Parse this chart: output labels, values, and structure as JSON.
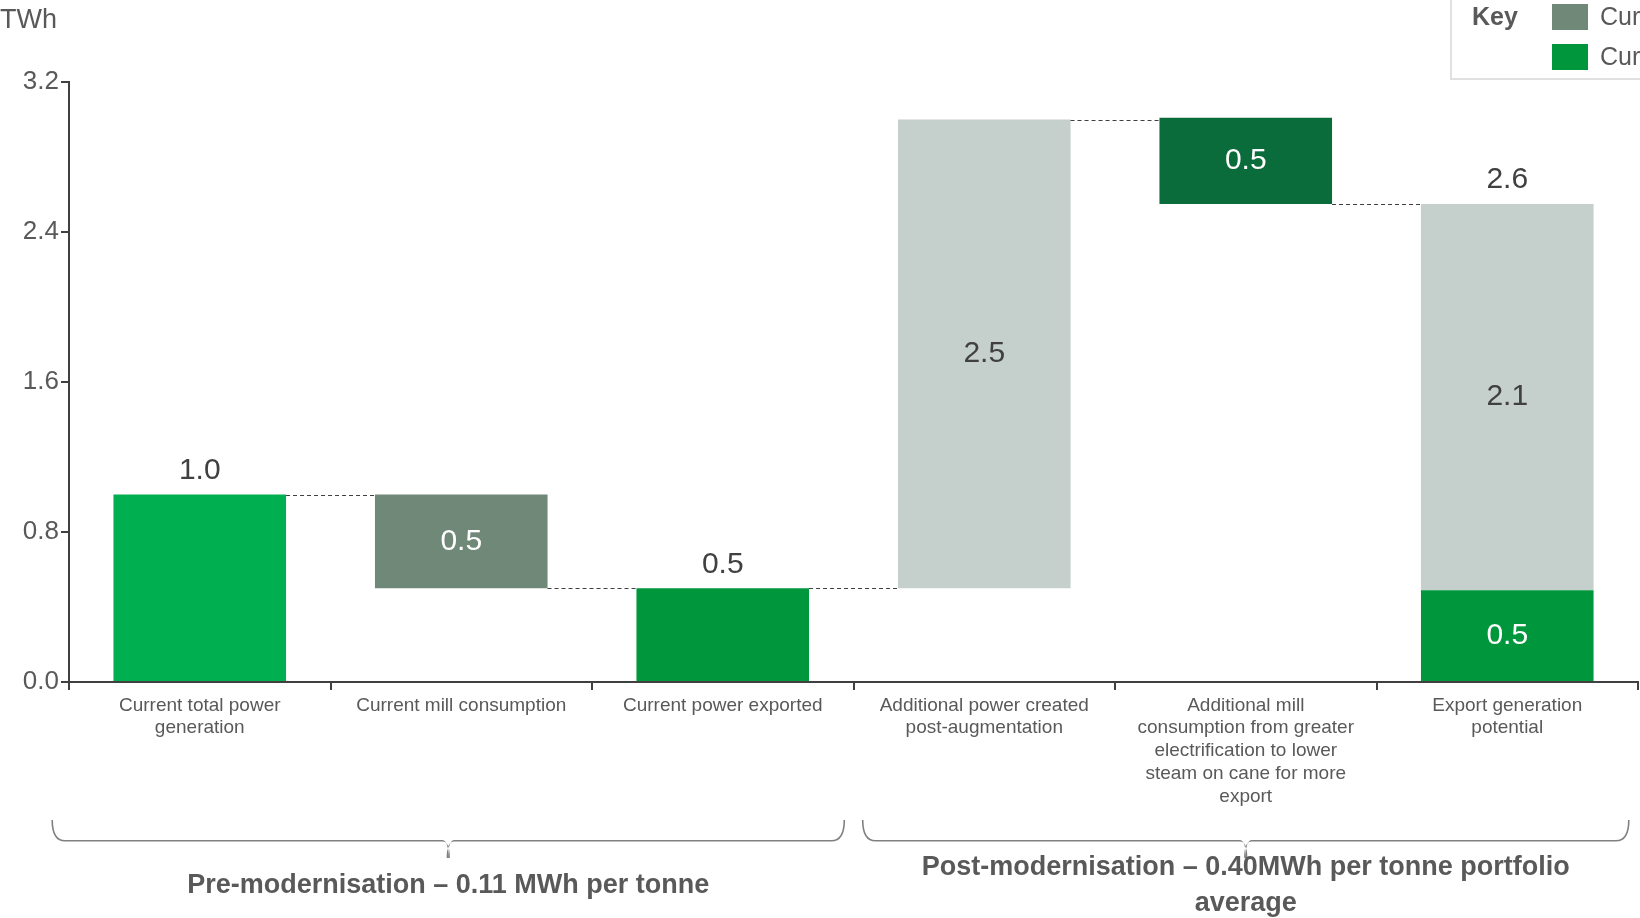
{
  "chart_data": {
    "type": "bar",
    "ylabel": "TWh",
    "legend_title": "Key",
    "legend": "top right",
    "categories": [
      "Current total power generation",
      "Current mill consumption",
      "Current power exported",
      "Additional power created post-augmentation",
      "Additional mill consumption from greater electrification to lower steam on cane for more export",
      "Export generation potential"
    ],
    "series": [
      {
        "name": "Cur",
        "color": "#708878",
        "base": [
          null,
          0.5,
          null,
          null,
          null,
          null
        ],
        "values": [
          null,
          0.5,
          null,
          null,
          null,
          null
        ],
        "value_labels": [
          null,
          "0.5",
          null,
          null,
          null,
          null
        ]
      },
      {
        "name": "Cur",
        "color": "#00963c",
        "base": [
          null,
          null,
          0,
          null,
          null,
          0
        ],
        "values": [
          null,
          null,
          0.5,
          null,
          null,
          0.49
        ],
        "value_labels": [
          null,
          null,
          "0.5",
          null,
          null,
          "0.5"
        ]
      },
      {
        "colors": [
          "#00b050",
          null,
          null,
          null,
          "#0a6b3b",
          null
        ],
        "base": [
          0,
          null,
          null,
          null,
          2.55,
          null
        ],
        "values": [
          1.0,
          null,
          null,
          null,
          0.46,
          null
        ],
        "value_labels": [
          "1.0",
          null,
          null,
          null,
          "0.5",
          null
        ]
      },
      {
        "color": "#c5cfcc",
        "base": [
          null,
          null,
          null,
          0.5,
          null,
          0.49
        ],
        "values": [
          null,
          null,
          null,
          2.5,
          null,
          2.06
        ],
        "value_labels": [
          null,
          null,
          null,
          "2.5",
          null,
          "2.1"
        ]
      }
    ],
    "totals": [
      null,
      null,
      null,
      null,
      null,
      "2.6"
    ],
    "ylim": [
      0,
      3.2
    ],
    "yticks": [
      {
        "value": 0,
        "label": "0.0"
      },
      {
        "value": 0.8,
        "label": "0.8"
      },
      {
        "value": 1.6,
        "label": "1.6"
      },
      {
        "value": 2.4,
        "label": "2.4"
      },
      {
        "value": 3.2,
        "label": "3.2"
      }
    ],
    "grid": false,
    "annotations": [
      "Pre-modernisation – 0.11 MWh per tonne",
      "Post-modernisation – 0.40MWh per tonne portfolio average"
    ]
  }
}
